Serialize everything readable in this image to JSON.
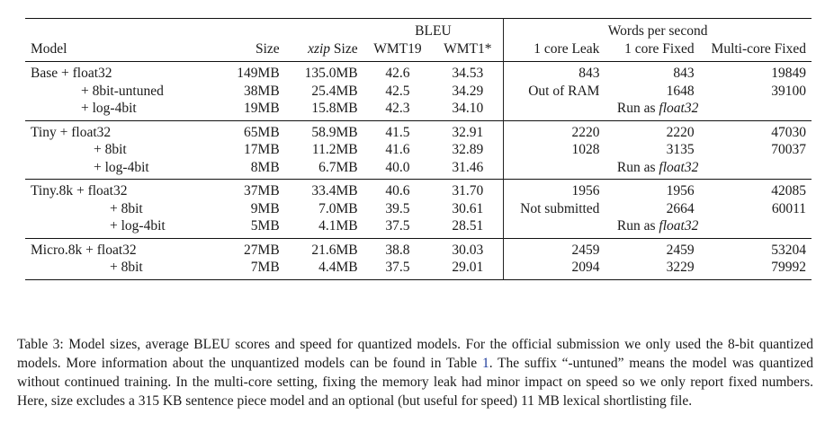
{
  "header": {
    "bleu_group": "BLEU",
    "wps_group": "Words per second",
    "model": "Model",
    "size": "Size",
    "xzip_italic": "xzip",
    "xzip_rest": " Size",
    "wmt19": "WMT19",
    "wmt1x": "WMT1*",
    "leak": "1 core Leak",
    "fixed": "1 core Fixed",
    "multi": "Multi-core Fixed"
  },
  "groups": [
    {
      "rows": [
        {
          "model": "Base + float32",
          "size": "149MB",
          "xzip": "135.0MB",
          "wmt19": "42.6",
          "wmt1x": "34.53",
          "leak": "843",
          "fixed": "843",
          "multi": "19849"
        },
        {
          "model": "+ 8bit-untuned",
          "size": "38MB",
          "xzip": "25.4MB",
          "wmt19": "42.5",
          "wmt1x": "34.29",
          "leak": "Out of RAM",
          "fixed": "1648",
          "multi": "39100"
        },
        {
          "model": "+ log-4bit",
          "size": "19MB",
          "xzip": "15.8MB",
          "wmt19": "42.3",
          "wmt1x": "34.10",
          "run_prefix": "Run as ",
          "run_italic": "float32"
        }
      ]
    },
    {
      "rows": [
        {
          "model": "Tiny + float32",
          "size": "65MB",
          "xzip": "58.9MB",
          "wmt19": "41.5",
          "wmt1x": "32.91",
          "leak": "2220",
          "fixed": "2220",
          "multi": "47030"
        },
        {
          "model": "+ 8bit",
          "size": "17MB",
          "xzip": "11.2MB",
          "wmt19": "41.6",
          "wmt1x": "32.89",
          "leak": "1028",
          "fixed": "3135",
          "multi": "70037"
        },
        {
          "model": "+ log-4bit",
          "size": "8MB",
          "xzip": "6.7MB",
          "wmt19": "40.0",
          "wmt1x": "31.46",
          "run_prefix": "Run as ",
          "run_italic": "float32"
        }
      ]
    },
    {
      "rows": [
        {
          "model": "Tiny.8k + float32",
          "size": "37MB",
          "xzip": "33.4MB",
          "wmt19": "40.6",
          "wmt1x": "31.70",
          "leak": "1956",
          "fixed": "1956",
          "multi": "42085"
        },
        {
          "model": "+ 8bit",
          "size": "9MB",
          "xzip": "7.0MB",
          "wmt19": "39.5",
          "wmt1x": "30.61",
          "leak": "Not submitted",
          "fixed": "2664",
          "multi": "60011"
        },
        {
          "model": "+ log-4bit",
          "size": "5MB",
          "xzip": "4.1MB",
          "wmt19": "37.5",
          "wmt1x": "28.51",
          "run_prefix": "Run as ",
          "run_italic": "float32"
        }
      ]
    },
    {
      "rows": [
        {
          "model": "Micro.8k + float32",
          "size": "27MB",
          "xzip": "21.6MB",
          "wmt19": "38.8",
          "wmt1x": "30.03",
          "leak": "2459",
          "fixed": "2459",
          "multi": "53204"
        },
        {
          "model": "+ 8bit",
          "size": "7MB",
          "xzip": "4.4MB",
          "wmt19": "37.5",
          "wmt1x": "29.01",
          "leak": "2094",
          "fixed": "3229",
          "multi": "79992"
        }
      ]
    }
  ],
  "caption": {
    "part1": "Table 3: Model sizes, average BLEU scores and speed for quantized models. For the official submission we only used the 8-bit quantized models. More information about the unquantized models can be found in Table ",
    "ref": "1",
    "part2": ". The suffix “-untuned” means the model was quantized without continued training. In the multi-core setting, fixing the memory leak had minor impact on speed so we only report fixed numbers. Here, size excludes a 315 KB sentence piece model and an optional (but useful for speed) 11 MB lexical shortlisting file."
  },
  "colors": {
    "text": "#1a1a1a",
    "ref_link": "#1f3c9c",
    "rule": "#111111"
  }
}
